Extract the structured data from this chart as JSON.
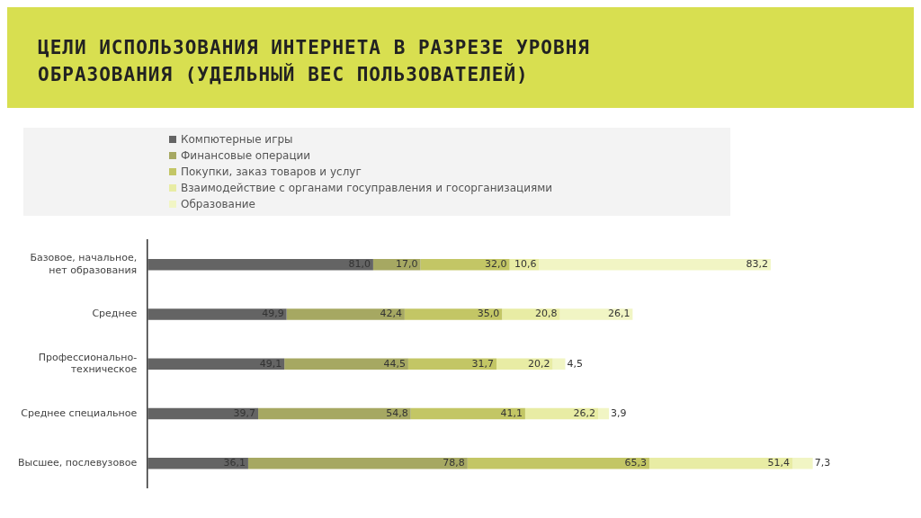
{
  "chart_data": {
    "type": "bar",
    "orientation": "horizontal",
    "stacked": true,
    "title": "ЦЕЛИ ИСПОЛЬЗОВАНИЯ ИНТЕРНЕТА В РАЗРЕЗЕ УРОВНЯ ОБРАЗОВАНИЯ (УДЕЛЬНЫЙ ВЕС ПОЛЬЗОВАТЕЛЕЙ)",
    "legend": "top",
    "categories": [
      "Базовое, начальное, нет образования",
      "Среднее",
      "Профессионально-техническое",
      "Среднее специальное",
      "Высшее, послевузовое"
    ],
    "series": [
      {
        "name": "Компютерные игры",
        "color": "#646464",
        "values": [
          81.0,
          49.9,
          49.1,
          39.7,
          36.1
        ],
        "value_labels": [
          "81,0",
          "49,9",
          "49,1",
          "39,7",
          "36,1"
        ]
      },
      {
        "name": "Финансовые операции",
        "color": "#a6a862",
        "values": [
          17.0,
          42.4,
          44.5,
          54.8,
          78.8
        ],
        "value_labels": [
          "17,0",
          "42,4",
          "44,5",
          "54,8",
          "78,8"
        ]
      },
      {
        "name": "Покупки, заказ товаров и услуг",
        "color": "#c3c665",
        "values": [
          32.0,
          35.0,
          31.7,
          41.1,
          65.3
        ],
        "value_labels": [
          "32,0",
          "35,0",
          "31,7",
          "41,1",
          "65,3"
        ]
      },
      {
        "name": "Взаимодействие с органами госуправления и госорганизациями",
        "color": "#e8eca4",
        "values": [
          10.6,
          20.8,
          20.2,
          26.2,
          51.4
        ],
        "value_labels": [
          "10,6",
          "20,8",
          "20,2",
          "26,2",
          "51,4"
        ]
      },
      {
        "name": "Образование",
        "color": "#f1f5c4",
        "values": [
          83.2,
          26.1,
          4.5,
          3.9,
          7.3
        ],
        "value_labels": [
          "83,2",
          "26,1",
          "4,5",
          "3,9",
          "7,3"
        ]
      }
    ]
  }
}
